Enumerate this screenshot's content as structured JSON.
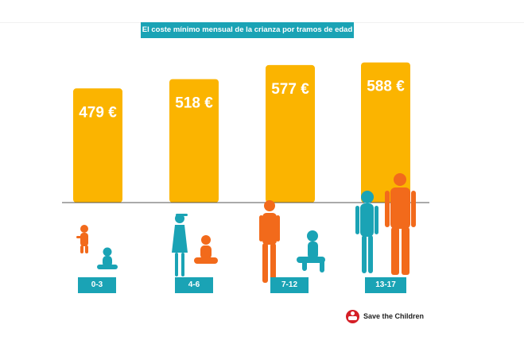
{
  "colors": {
    "bar": "#fbb400",
    "accent": "#1aa3b5",
    "orange": "#f26a1b",
    "baseline": "#555555"
  },
  "chart_data": {
    "type": "bar",
    "title": "El coste mínimo mensual de la crianza por tramos de edad",
    "categories": [
      "0-3",
      "4-6",
      "7-12",
      "13-17"
    ],
    "values": [
      479,
      518,
      577,
      588
    ],
    "value_labels": [
      "479 €",
      "518 €",
      "577 €",
      "588 €"
    ],
    "unit": "€",
    "ylim": [
      0,
      600
    ],
    "grid": false,
    "legend": "none"
  },
  "logo": {
    "text": "Save the Children",
    "icon": "save-the-children-logo-icon"
  }
}
